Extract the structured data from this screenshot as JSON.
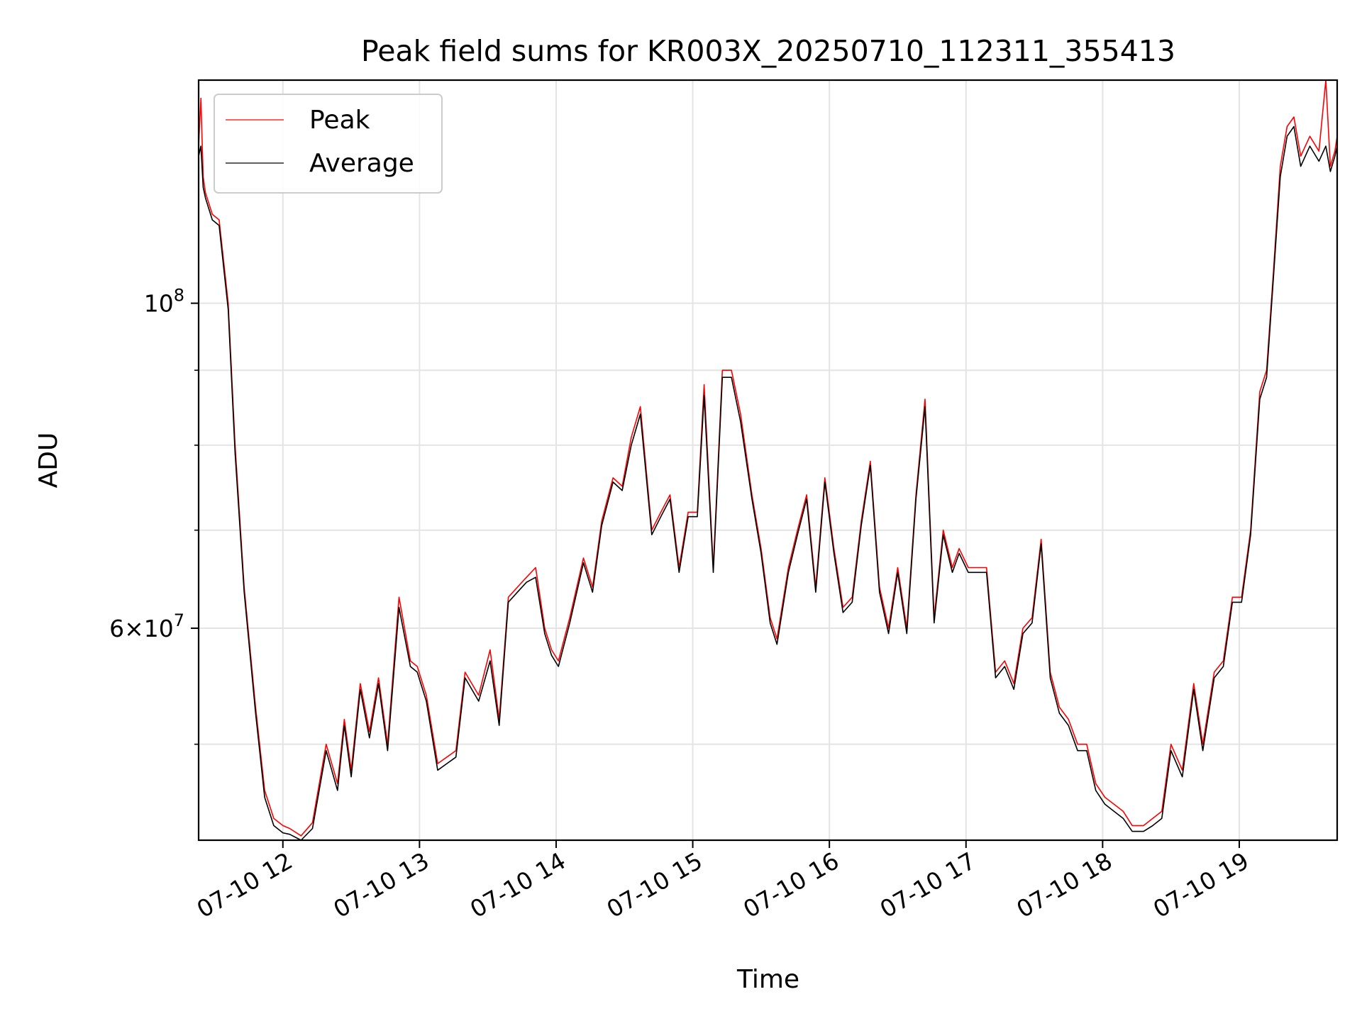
{
  "chart_data": {
    "type": "line",
    "title": "Peak field sums for KR003X_20250710_112311_355413",
    "xlabel": "Time",
    "ylabel": "ADU",
    "x_unit": "time of day (2025-07-10)",
    "xlim": [
      "11:23",
      "19:43"
    ],
    "y_scale": "log",
    "ylim": [
      43000000,
      142000000
    ],
    "x_ticks": [
      "12:00",
      "13:00",
      "14:00",
      "15:00",
      "16:00",
      "17:00",
      "18:00",
      "19:00"
    ],
    "x_tick_labels": [
      "07-10 12",
      "07-10 13",
      "07-10 14",
      "07-10 15",
      "07-10 16",
      "07-10 17",
      "07-10 18",
      "07-10 19"
    ],
    "y_major_ticks": [
      60000000,
      100000000
    ],
    "y_major_base": [
      "6×10",
      "10"
    ],
    "y_major_exp": [
      "7",
      "8"
    ],
    "y_minor_ticks": [
      50000000,
      70000000,
      80000000,
      90000000
    ],
    "grid": true,
    "legend_position": "upper left",
    "series": [
      {
        "name": "Peak",
        "color": "#ff0000",
        "x": [
          "11:23",
          "11:24",
          "11:25",
          "11:26",
          "11:29",
          "11:32",
          "11:36",
          "11:39",
          "11:43",
          "11:48",
          "11:52",
          "11:56",
          "12:00",
          "12:03",
          "12:08",
          "12:13",
          "12:19",
          "12:24",
          "12:27",
          "12:30",
          "12:34",
          "12:38",
          "12:42",
          "12:46",
          "12:51",
          "12:56",
          "12:59",
          "13:03",
          "13:08",
          "13:12",
          "13:16",
          "13:20",
          "13:26",
          "13:31",
          "13:35",
          "13:39",
          "13:43",
          "13:47",
          "13:51",
          "13:55",
          "13:58",
          "14:01",
          "14:06",
          "14:12",
          "14:16",
          "14:20",
          "14:25",
          "14:29",
          "14:33",
          "14:37",
          "14:42",
          "14:46",
          "14:50",
          "14:54",
          "14:58",
          "15:02",
          "15:05",
          "15:09",
          "15:13",
          "15:17",
          "15:21",
          "15:26",
          "15:30",
          "15:34",
          "15:37",
          "15:42",
          "15:46",
          "15:50",
          "15:54",
          "15:58",
          "16:02",
          "16:06",
          "16:10",
          "16:14",
          "16:18",
          "16:22",
          "16:26",
          "16:30",
          "16:34",
          "16:38",
          "16:42",
          "16:46",
          "16:50",
          "16:54",
          "16:57",
          "17:01",
          "17:05",
          "17:09",
          "17:13",
          "17:17",
          "17:21",
          "17:25",
          "17:29",
          "17:33",
          "17:37",
          "17:41",
          "17:45",
          "17:49",
          "17:53",
          "17:57",
          "18:01",
          "18:05",
          "18:09",
          "18:13",
          "18:18",
          "18:22",
          "18:26",
          "18:30",
          "18:35",
          "18:40",
          "18:44",
          "18:49",
          "18:53",
          "18:57",
          "19:01",
          "19:05",
          "19:09",
          "19:12",
          "19:15",
          "19:18",
          "19:21",
          "19:24",
          "19:27",
          "19:31",
          "19:35",
          "19:38",
          "19:40",
          "19:42",
          "19:43"
        ],
        "values": [
          128000000,
          138000000,
          122000000,
          119000000,
          115000000,
          114000000,
          100000000,
          80000000,
          64000000,
          53000000,
          46500000,
          44500000,
          44000000,
          43800000,
          43300000,
          44200000,
          50000000,
          47000000,
          52000000,
          48000000,
          55000000,
          51000000,
          55500000,
          50000000,
          63000000,
          57000000,
          56500000,
          54000000,
          48500000,
          49000000,
          49500000,
          56000000,
          54000000,
          58000000,
          52000000,
          63000000,
          64000000,
          65000000,
          66000000,
          60000000,
          58000000,
          57000000,
          61000000,
          67000000,
          64000000,
          71000000,
          76000000,
          75000000,
          81000000,
          85000000,
          70000000,
          72000000,
          74000000,
          66000000,
          72000000,
          72000000,
          88000000,
          66000000,
          90000000,
          90000000,
          84000000,
          74000000,
          68000000,
          61000000,
          59000000,
          66000000,
          70000000,
          74000000,
          64000000,
          76000000,
          68000000,
          62000000,
          63000000,
          71000000,
          78000000,
          64000000,
          60000000,
          66000000,
          60000000,
          74000000,
          86000000,
          61000000,
          70000000,
          66000000,
          68000000,
          66000000,
          66000000,
          66000000,
          56000000,
          57000000,
          55000000,
          60000000,
          61000000,
          69000000,
          56000000,
          53000000,
          52000000,
          50000000,
          50000000,
          47000000,
          46000000,
          45500000,
          45000000,
          44000000,
          44000000,
          44500000,
          45000000,
          50000000,
          48000000,
          55000000,
          50000000,
          56000000,
          57000000,
          63000000,
          63000000,
          70000000,
          87000000,
          90000000,
          105000000,
          124000000,
          132000000,
          134000000,
          126000000,
          130000000,
          127000000,
          160000000,
          124000000,
          127000000,
          130000000
        ]
      },
      {
        "name": "Average",
        "color": "#000000",
        "x": [
          "11:23",
          "11:24",
          "11:25",
          "11:26",
          "11:29",
          "11:32",
          "11:36",
          "11:39",
          "11:43",
          "11:48",
          "11:52",
          "11:56",
          "12:00",
          "12:03",
          "12:08",
          "12:13",
          "12:19",
          "12:24",
          "12:27",
          "12:30",
          "12:34",
          "12:38",
          "12:42",
          "12:46",
          "12:51",
          "12:56",
          "12:59",
          "13:03",
          "13:08",
          "13:12",
          "13:16",
          "13:20",
          "13:26",
          "13:31",
          "13:35",
          "13:39",
          "13:43",
          "13:47",
          "13:51",
          "13:55",
          "13:58",
          "14:01",
          "14:06",
          "14:12",
          "14:16",
          "14:20",
          "14:25",
          "14:29",
          "14:33",
          "14:37",
          "14:42",
          "14:46",
          "14:50",
          "14:54",
          "14:58",
          "15:02",
          "15:05",
          "15:09",
          "15:13",
          "15:17",
          "15:21",
          "15:26",
          "15:30",
          "15:34",
          "15:37",
          "15:42",
          "15:46",
          "15:50",
          "15:54",
          "15:58",
          "16:02",
          "16:06",
          "16:10",
          "16:14",
          "16:18",
          "16:22",
          "16:26",
          "16:30",
          "16:34",
          "16:38",
          "16:42",
          "16:46",
          "16:50",
          "16:54",
          "16:57",
          "17:01",
          "17:05",
          "17:09",
          "17:13",
          "17:17",
          "17:21",
          "17:25",
          "17:29",
          "17:33",
          "17:37",
          "17:41",
          "17:45",
          "17:49",
          "17:53",
          "17:57",
          "18:01",
          "18:05",
          "18:09",
          "18:13",
          "18:18",
          "18:22",
          "18:26",
          "18:30",
          "18:35",
          "18:40",
          "18:44",
          "18:49",
          "18:53",
          "18:57",
          "19:01",
          "19:05",
          "19:09",
          "19:12",
          "19:15",
          "19:18",
          "19:21",
          "19:24",
          "19:27",
          "19:31",
          "19:35",
          "19:38",
          "19:40",
          "19:42",
          "19:43"
        ],
        "values": [
          126000000,
          128000000,
          120000000,
          118000000,
          114000000,
          113000000,
          99000000,
          79000000,
          63500000,
          52500000,
          46000000,
          44000000,
          43500000,
          43400000,
          43000000,
          43800000,
          49500000,
          46500000,
          51500000,
          47500000,
          54500000,
          50500000,
          55000000,
          49500000,
          62000000,
          56500000,
          56000000,
          53500000,
          48000000,
          48500000,
          49000000,
          55500000,
          53500000,
          57000000,
          51500000,
          62500000,
          63500000,
          64500000,
          65000000,
          59500000,
          57500000,
          56500000,
          60500000,
          66500000,
          63500000,
          70500000,
          75500000,
          74500000,
          80000000,
          84000000,
          69500000,
          71500000,
          73500000,
          65500000,
          71500000,
          71500000,
          86500000,
          65500000,
          89000000,
          89000000,
          83000000,
          73500000,
          67500000,
          60500000,
          58500000,
          65500000,
          69500000,
          73500000,
          63500000,
          75500000,
          67500000,
          61500000,
          62500000,
          70500000,
          77500000,
          63500000,
          59500000,
          65500000,
          59500000,
          73500000,
          85000000,
          60500000,
          69500000,
          65500000,
          67500000,
          65500000,
          65500000,
          65500000,
          55500000,
          56500000,
          54500000,
          59500000,
          60500000,
          68500000,
          55500000,
          52500000,
          51500000,
          49500000,
          49500000,
          46500000,
          45500000,
          45000000,
          44500000,
          43600000,
          43600000,
          44000000,
          44500000,
          49500000,
          47500000,
          54500000,
          49500000,
          55500000,
          56500000,
          62500000,
          62500000,
          69500000,
          86000000,
          89000000,
          104000000,
          122000000,
          130000000,
          132000000,
          124000000,
          128000000,
          125000000,
          128000000,
          123000000,
          126000000,
          128000000
        ]
      }
    ]
  }
}
